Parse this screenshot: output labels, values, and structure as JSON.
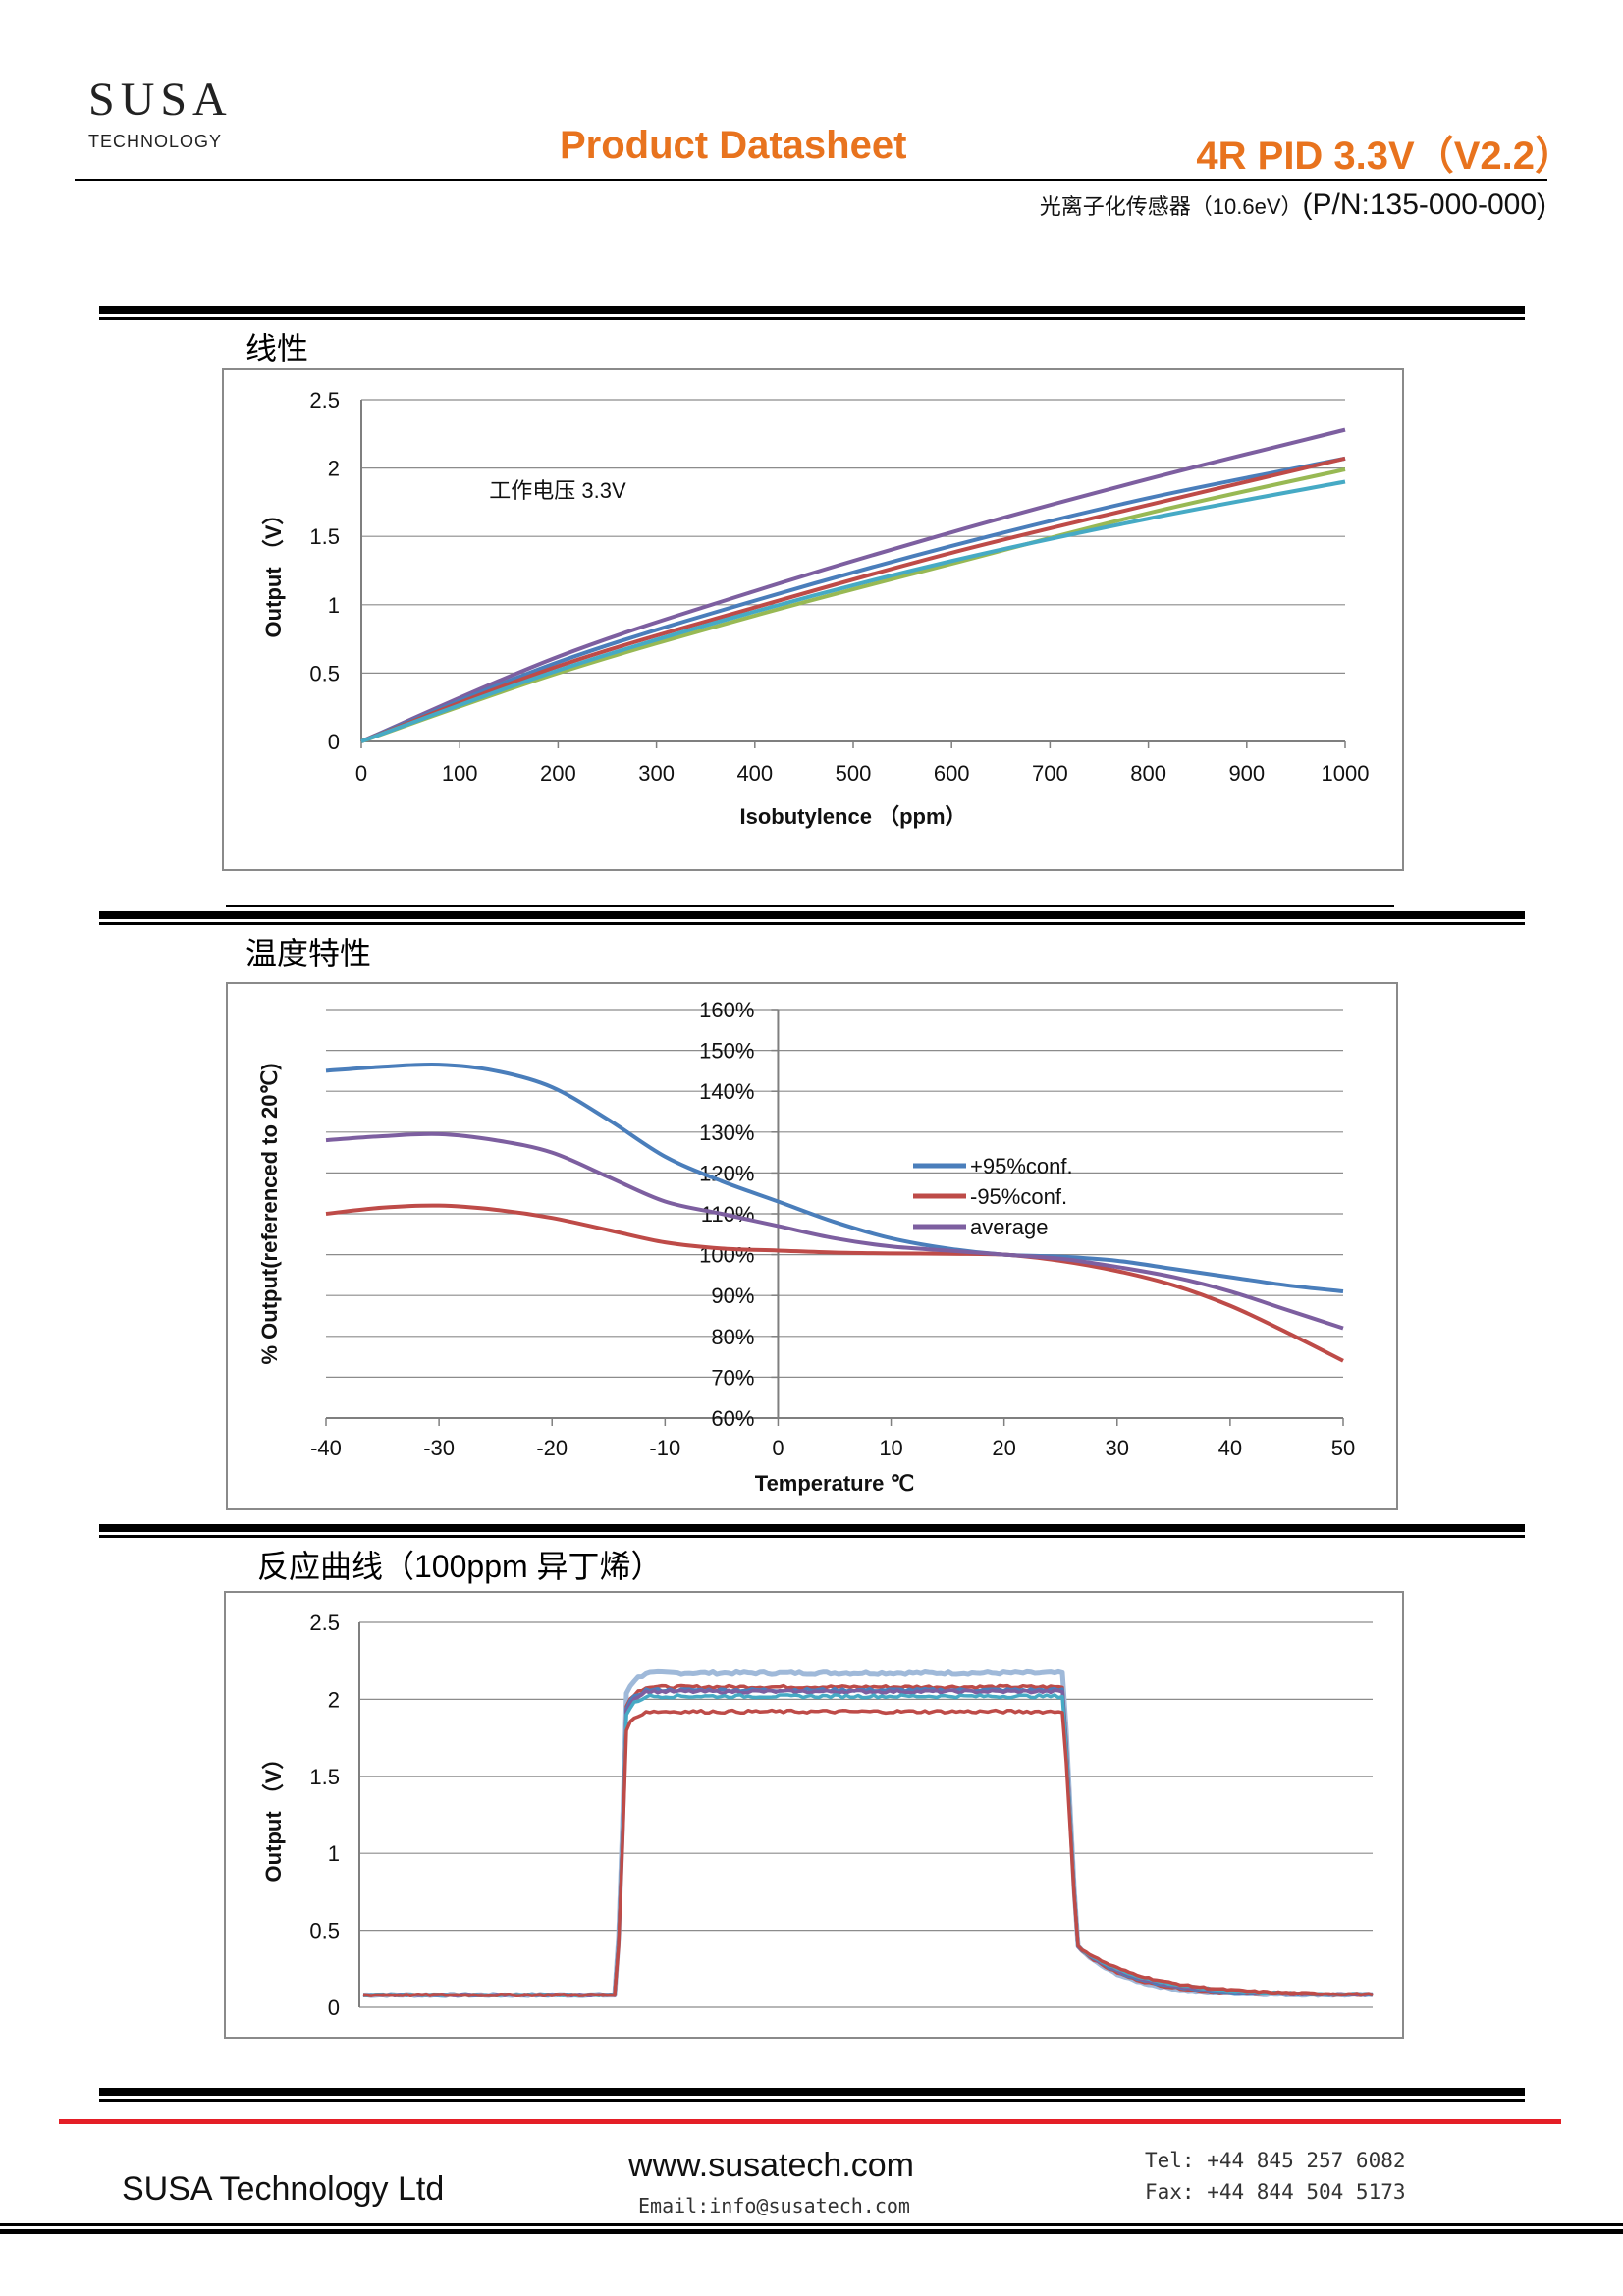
{
  "header": {
    "logo_name": "SUSA",
    "logo_sub": "TECHNOLOGY",
    "doc_title": "Product Datasheet",
    "model": "4R PID 3.3V（V2.2）",
    "subtitle_cn": "光离子化传感器（10.6eV）",
    "subtitle_pn": "(P/N:135-000-000)"
  },
  "sections": {
    "linearity": "线性",
    "temperature": "温度特性",
    "response": "反应曲线（100ppm 异丁烯）"
  },
  "colors": {
    "blue": "#4a7ebb",
    "red": "#be4b48",
    "purple": "#7d5fa0",
    "green": "#98b954",
    "teal": "#46aac5",
    "lightblue": "#9fb9d9",
    "accent_orange": "#e8731e",
    "footer_red": "#e41e26"
  },
  "chart_data": [
    {
      "type": "line",
      "title": "",
      "annotation": "工作电压 3.3V",
      "xlabel": "Isobutylence （ppm）",
      "ylabel": "Output （V）",
      "xlim": [
        0,
        1000
      ],
      "ylim": [
        0,
        2.5
      ],
      "xticks": [
        "0",
        "100",
        "200",
        "300",
        "400",
        "500",
        "600",
        "700",
        "800",
        "900",
        "1000"
      ],
      "yticks": [
        "0",
        "0.5",
        "1",
        "1.5",
        "2",
        "2.5"
      ],
      "grid": true,
      "x": [
        0,
        200,
        400,
        600,
        800,
        1000
      ],
      "series": [
        {
          "color": "purple",
          "values": [
            0,
            0.62,
            1.1,
            1.53,
            1.92,
            2.28
          ]
        },
        {
          "color": "blue",
          "values": [
            0,
            0.58,
            1.03,
            1.43,
            1.78,
            2.07
          ]
        },
        {
          "color": "red",
          "values": [
            0,
            0.55,
            0.98,
            1.38,
            1.73,
            2.07
          ]
        },
        {
          "color": "green",
          "values": [
            0,
            0.5,
            0.92,
            1.3,
            1.67,
            1.99
          ]
        },
        {
          "color": "teal",
          "values": [
            0,
            0.52,
            0.95,
            1.32,
            1.63,
            1.9
          ]
        }
      ]
    },
    {
      "type": "line",
      "title": "",
      "xlabel": "Temperature ℃",
      "ylabel": "% Output(referenced to 20℃)",
      "xlim": [
        -40,
        50
      ],
      "ylim": [
        60,
        160
      ],
      "xticks": [
        "-40",
        "-30",
        "-20",
        "-10",
        "0",
        "10",
        "20",
        "30",
        "40",
        "50"
      ],
      "yticks": [
        "60%",
        "70%",
        "80%",
        "90%",
        "100%",
        "110%",
        "120%",
        "130%",
        "140%",
        "150%",
        "160%"
      ],
      "grid": true,
      "legend_position": "center-right",
      "x": [
        -40,
        -35,
        -30,
        -25,
        -20,
        -15,
        -10,
        -5,
        0,
        5,
        10,
        15,
        20,
        25,
        30,
        35,
        40,
        45,
        50
      ],
      "series": [
        {
          "name": "+95%conf.",
          "color": "blue",
          "values": [
            145,
            146,
            146.5,
            145,
            141,
            133,
            124,
            118,
            113,
            108,
            104,
            101.5,
            100,
            99.5,
            98.5,
            96.5,
            94.5,
            92.5,
            91
          ]
        },
        {
          "name": "-95%conf.",
          "color": "red",
          "values": [
            110,
            111.5,
            112,
            111,
            109,
            106,
            103,
            101.5,
            101,
            100.5,
            100.3,
            100.2,
            100,
            98.5,
            96,
            92.5,
            87.5,
            81,
            74
          ]
        },
        {
          "name": "average",
          "color": "purple",
          "values": [
            128,
            129,
            129.5,
            128,
            125,
            119,
            113,
            110,
            107,
            104,
            102,
            101,
            100,
            99,
            97,
            94.5,
            91,
            86.5,
            82
          ]
        }
      ]
    },
    {
      "type": "line",
      "title": "",
      "xlabel": "",
      "ylabel": "Output （V）",
      "ylim": [
        0,
        2.5
      ],
      "yticks": [
        "0",
        "0.5",
        "1",
        "1.5",
        "2",
        "2.5"
      ],
      "grid": true,
      "series": [
        {
          "color": "lightblue",
          "plateau": 2.17
        },
        {
          "color": "red",
          "plateau": 2.08
        },
        {
          "color": "blue",
          "plateau": 2.06
        },
        {
          "color": "purple",
          "plateau": 2.05
        },
        {
          "color": "teal",
          "plateau": 2.02
        },
        {
          "color": "red",
          "plateau": 1.92
        }
      ],
      "baseline": 0.08
    }
  ],
  "footer": {
    "company": "SUSA Technology Ltd",
    "website": "www.susatech.com",
    "email": "Email:info@susatech.com",
    "tel": "Tel: +44 845 257 6082",
    "fax": "Fax: +44 844 504 5173"
  }
}
